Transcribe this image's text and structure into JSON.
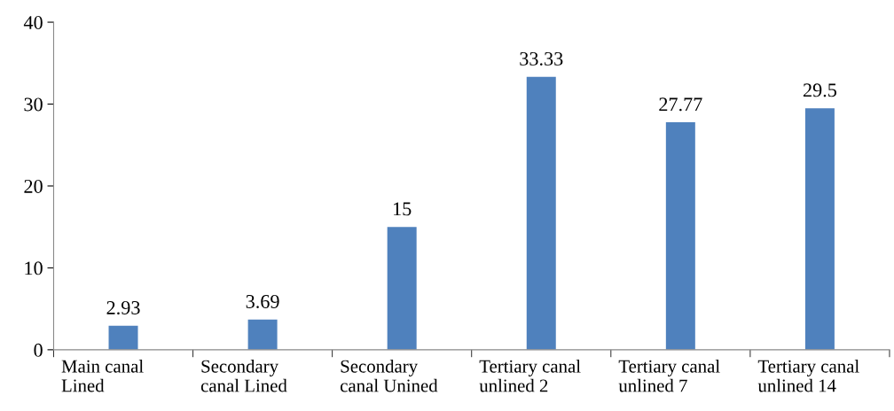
{
  "chart_data": {
    "type": "bar",
    "categories": [
      "Main canal\nLined",
      "Secondary\ncanal Lined",
      "Secondary\ncanal Unined",
      "Tertiary canal\nunlined 2",
      "Tertiary canal\nunlined 7",
      "Tertiary canal\nunlined 14"
    ],
    "values": [
      2.93,
      3.69,
      15,
      33.33,
      27.77,
      29.5
    ],
    "color": "#4f81bd",
    "ylim": [
      0,
      40
    ],
    "yticks": [
      0,
      10,
      20,
      30,
      40
    ],
    "data_labels": true,
    "grid": false
  }
}
